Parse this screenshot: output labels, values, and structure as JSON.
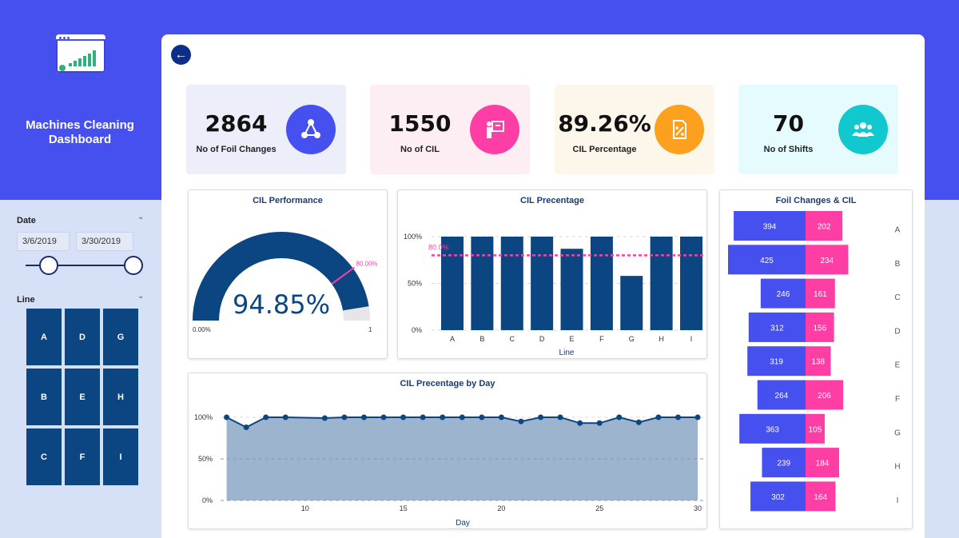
{
  "sidebar": {
    "title": "Machines Cleaning Dashboard",
    "date_label": "Date",
    "date_start": "3/6/2019",
    "date_end": "3/30/2019",
    "line_label": "Line",
    "lines": [
      "A",
      "D",
      "G",
      "B",
      "E",
      "H",
      "C",
      "F",
      "I"
    ]
  },
  "colors": {
    "accent": "#4650ee",
    "navy": "#0b4682",
    "pink": "#ff3ea5",
    "blue": "#4650ee"
  },
  "kpis": [
    {
      "value": "2864",
      "label": "No of Foil Changes",
      "bg": "#eceef9",
      "icon_bg": "#4650ee",
      "icon": "network-icon"
    },
    {
      "value": "1550",
      "label": "No of CIL",
      "bg": "#fdeef4",
      "icon_bg": "#ff3ea5",
      "icon": "presenter-icon"
    },
    {
      "value": "89.26%",
      "label": "CIL Percentage",
      "bg": "#fdf6ea",
      "icon_bg": "#fca01d",
      "icon": "percent-doc-icon"
    },
    {
      "value": "70",
      "label": "No of Shifts",
      "bg": "#e6fbfd",
      "icon_bg": "#11c8ce",
      "icon": "group-icon"
    }
  ],
  "gauge": {
    "title": "CIL Performance",
    "value_text": "94.85%",
    "value": 0.9485,
    "min_label": "0.00%",
    "max_label": "1",
    "target": 0.8,
    "target_label": "80.00%"
  },
  "chart_data": [
    {
      "type": "bar",
      "title": "CIL Precentage",
      "xlabel": "Line",
      "ylabel": "",
      "categories": [
        "A",
        "B",
        "C",
        "D",
        "E",
        "F",
        "G",
        "H",
        "I"
      ],
      "values": [
        1.0,
        1.0,
        1.0,
        1.0,
        0.87,
        1.0,
        0.58,
        1.0,
        1.0
      ],
      "ylim": [
        0,
        1
      ],
      "yticks": [
        "0%",
        "50%",
        "100%"
      ],
      "target": 0.8,
      "target_label": "80.0%"
    },
    {
      "type": "area",
      "title": "CIL Precentage by Day",
      "xlabel": "Day",
      "ylabel": "",
      "x": [
        6,
        7,
        8,
        9,
        11,
        12,
        13,
        14,
        15,
        16,
        17,
        18,
        19,
        20,
        21,
        22,
        23,
        24,
        25,
        26,
        27,
        28,
        29,
        30
      ],
      "values": [
        1.0,
        0.88,
        1.0,
        1.0,
        0.99,
        1.0,
        1.0,
        1.0,
        1.0,
        1.0,
        1.0,
        1.0,
        1.0,
        1.0,
        0.95,
        1.0,
        1.0,
        0.93,
        0.93,
        1.0,
        0.94,
        1.0,
        1.0,
        1.0
      ],
      "xlim": [
        5,
        30
      ],
      "xticks": [
        10,
        15,
        20,
        25,
        30
      ],
      "ylim": [
        0,
        1
      ],
      "yticks": [
        "0%",
        "50%",
        "100%"
      ]
    },
    {
      "type": "bar",
      "title": "Foil  Changes & CIL",
      "categories": [
        "A",
        "B",
        "C",
        "D",
        "E",
        "F",
        "G",
        "H",
        "I"
      ],
      "series": [
        {
          "values": [
            394,
            425,
            246,
            312,
            319,
            264,
            363,
            239,
            302
          ]
        },
        {
          "values": [
            202,
            234,
            161,
            156,
            138,
            206,
            105,
            184,
            164
          ]
        }
      ]
    }
  ]
}
